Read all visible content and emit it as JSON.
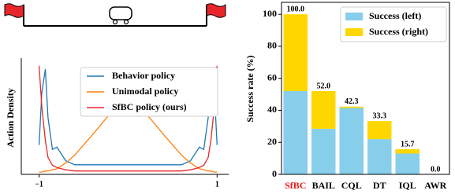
{
  "chart_data": [
    {
      "type": "line",
      "ylabel": "Action Density",
      "x": [
        -1,
        -0.97,
        -0.93,
        -0.9,
        -0.85,
        -0.8,
        -0.7,
        -0.6,
        -0.4,
        -0.2,
        0,
        0.2,
        0.4,
        0.6,
        0.7,
        0.8,
        0.85,
        0.9,
        0.93,
        0.97,
        1
      ],
      "xlim": [
        -1.2,
        1.13
      ],
      "xticks": [
        {
          "value": -1,
          "label": "−1"
        },
        1
      ],
      "ylim": [
        0,
        1
      ],
      "legend": "upper center",
      "series": [
        {
          "name": "Behavior policy",
          "color": "#1f77b4",
          "values": [
            0.26,
            0.72,
            0.93,
            0.5,
            0.22,
            0.24,
            0.12,
            0.085,
            0.085,
            0.085,
            0.085,
            0.085,
            0.085,
            0.085,
            0.12,
            0.24,
            0.22,
            0.5,
            0.9,
            0.72,
            0.26
          ]
        },
        {
          "name": "Unimodal policy",
          "color": "#ff7f0e",
          "values": [
            0.02,
            0.02,
            0.03,
            0.03,
            0.04,
            0.05,
            0.1,
            0.17,
            0.35,
            0.54,
            0.63,
            0.54,
            0.35,
            0.17,
            0.1,
            0.05,
            0.04,
            0.03,
            0.03,
            0.02,
            0.02
          ]
        },
        {
          "name": "SfBC policy (ours)",
          "color": "#e8262a",
          "values": [
            0.96,
            0.6,
            0.3,
            0.15,
            0.08,
            0.06,
            0.04,
            0.03,
            0.03,
            0.03,
            0.03,
            0.03,
            0.03,
            0.03,
            0.04,
            0.06,
            0.08,
            0.15,
            0.3,
            0.6,
            0.96
          ]
        }
      ]
    },
    {
      "type": "stacked_bar",
      "ylabel": "Success rate (%)",
      "categories": [
        "SfBC",
        "BAIL",
        "CQL",
        "DT",
        "IQL",
        "AWR"
      ],
      "category_label_colors": [
        "#e31a1c",
        "#000000",
        "#000000",
        "#000000",
        "#000000",
        "#000000"
      ],
      "series": [
        {
          "name": "Success (left)",
          "color": "#87ceeb",
          "values": [
            52,
            28.5,
            41.5,
            22,
            13,
            0
          ]
        },
        {
          "name": "Success (right)",
          "color": "#ffd700",
          "values": [
            48,
            23.5,
            0.8,
            11.3,
            2.7,
            0
          ]
        }
      ],
      "totals": [
        100,
        52,
        42.3,
        33.3,
        15.7,
        0
      ],
      "total_labels": [
        "100.0",
        "52.0",
        "42.3",
        "33.3",
        "15.7",
        "0.0"
      ],
      "ylim": [
        0,
        105
      ],
      "yticks": [
        0,
        20,
        40,
        60,
        80,
        100
      ],
      "legend": "upper right"
    }
  ]
}
